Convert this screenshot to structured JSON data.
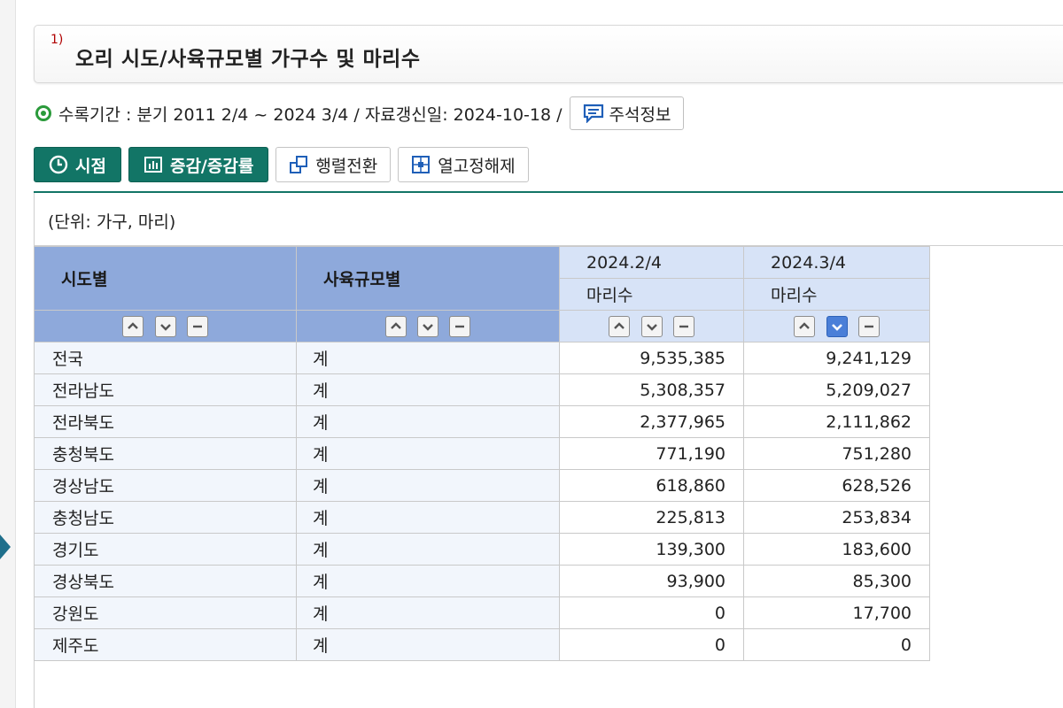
{
  "title": {
    "sup": "1)",
    "text": "오리 시도/사육규모별 가구수 및 마리수"
  },
  "period": {
    "text": "수록기간 : 분기 2011 2/4 ~ 2024 3/4 / 자료갱신일: 2024-10-18 /",
    "note_button": "주석정보"
  },
  "toolbar": {
    "timepoint": "시점",
    "change": "증감/증감률",
    "pivot": "행렬전환",
    "unfix": "열고정해제"
  },
  "unit": "(단위: 가구, 마리)",
  "table": {
    "col1": "시도별",
    "col2": "사육규모별",
    "periods": [
      {
        "label": "2024.2/4",
        "sub": "마리수"
      },
      {
        "label": "2024.3/4",
        "sub": "마리수"
      }
    ],
    "rows": [
      {
        "region": "전국",
        "scale": "계",
        "v1": "9,535,385",
        "v2": "9,241,129"
      },
      {
        "region": "전라남도",
        "scale": "계",
        "v1": "5,308,357",
        "v2": "5,209,027"
      },
      {
        "region": "전라북도",
        "scale": "계",
        "v1": "2,377,965",
        "v2": "2,111,862"
      },
      {
        "region": "충청북도",
        "scale": "계",
        "v1": "771,190",
        "v2": "751,280"
      },
      {
        "region": "경상남도",
        "scale": "계",
        "v1": "618,860",
        "v2": "628,526"
      },
      {
        "region": "충청남도",
        "scale": "계",
        "v1": "225,813",
        "v2": "253,834"
      },
      {
        "region": "경기도",
        "scale": "계",
        "v1": "139,300",
        "v2": "183,600"
      },
      {
        "region": "경상북도",
        "scale": "계",
        "v1": "93,900",
        "v2": "85,300"
      },
      {
        "region": "강원도",
        "scale": "계",
        "v1": "0",
        "v2": "17,700"
      },
      {
        "region": "제주도",
        "scale": "계",
        "v1": "0",
        "v2": "0"
      }
    ]
  },
  "colors": {
    "accent": "#127566",
    "header_dark": "#8ea9db",
    "header_light": "#d7e3f7",
    "active_sort": "#4a7fd8"
  }
}
